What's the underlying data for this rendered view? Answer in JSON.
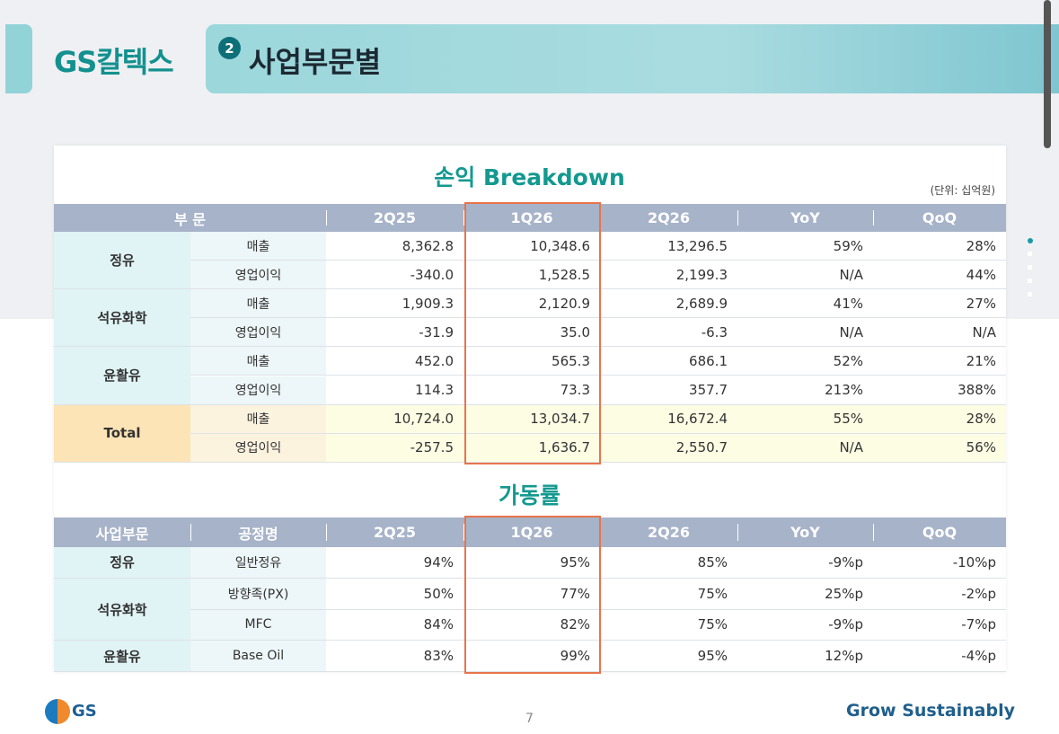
{
  "header": {
    "brand": "GS칼텍스",
    "section_number": "2",
    "title": "사업부문별"
  },
  "table1": {
    "title": "손익 Breakdown",
    "unit": "(단위: 십억원)",
    "columns": [
      "부 문",
      "2Q25",
      "1Q26",
      "2Q26",
      "YoY",
      "QoQ"
    ],
    "groups": [
      {
        "segment": "정유",
        "rows": [
          {
            "item": "매출",
            "cells": [
              "8,362.8",
              "10,348.6",
              "13,296.5",
              "59%",
              "28%"
            ]
          },
          {
            "item": "영업이익",
            "cells": [
              "-340.0",
              "1,528.5",
              "2,199.3",
              "N/A",
              "44%"
            ]
          }
        ]
      },
      {
        "segment": "석유화학",
        "rows": [
          {
            "item": "매출",
            "cells": [
              "1,909.3",
              "2,120.9",
              "2,689.9",
              "41%",
              "27%"
            ]
          },
          {
            "item": "영업이익",
            "cells": [
              "-31.9",
              "35.0",
              "-6.3",
              "N/A",
              "N/A"
            ]
          }
        ]
      },
      {
        "segment": "윤활유",
        "rows": [
          {
            "item": "매출",
            "cells": [
              "452.0",
              "565.3",
              "686.1",
              "52%",
              "21%"
            ]
          },
          {
            "item": "영업이익",
            "cells": [
              "114.3",
              "73.3",
              "357.7",
              "213%",
              "388%"
            ]
          }
        ]
      },
      {
        "segment": "Total",
        "rows": [
          {
            "item": "매출",
            "cells": [
              "10,724.0",
              "13,034.7",
              "16,672.4",
              "55%",
              "28%"
            ]
          },
          {
            "item": "영업이익",
            "cells": [
              "-257.5",
              "1,636.7",
              "2,550.7",
              "N/A",
              "56%"
            ]
          }
        ]
      }
    ]
  },
  "table2": {
    "title": "가동률",
    "columns": [
      "사업부문",
      "공정명",
      "2Q25",
      "1Q26",
      "2Q26",
      "YoY",
      "QoQ"
    ],
    "groups": [
      {
        "segment": "정유",
        "rows": [
          {
            "item": "일반정유",
            "cells": [
              "94%",
              "95%",
              "85%",
              "-9%p",
              "-10%p"
            ]
          }
        ]
      },
      {
        "segment": "석유화학",
        "rows": [
          {
            "item": "방향족(PX)",
            "cells": [
              "50%",
              "77%",
              "75%",
              "25%p",
              "-2%p"
            ]
          },
          {
            "item": "MFC",
            "cells": [
              "84%",
              "82%",
              "75%",
              "-9%p",
              "-7%p"
            ]
          }
        ]
      },
      {
        "segment": "윤활유",
        "rows": [
          {
            "item": "Base Oil",
            "cells": [
              "83%",
              "99%",
              "95%",
              "12%p",
              "-4%p"
            ]
          }
        ]
      }
    ]
  },
  "footer": {
    "logo": "GS",
    "page": "7",
    "slogan": "Grow Sustainably"
  }
}
